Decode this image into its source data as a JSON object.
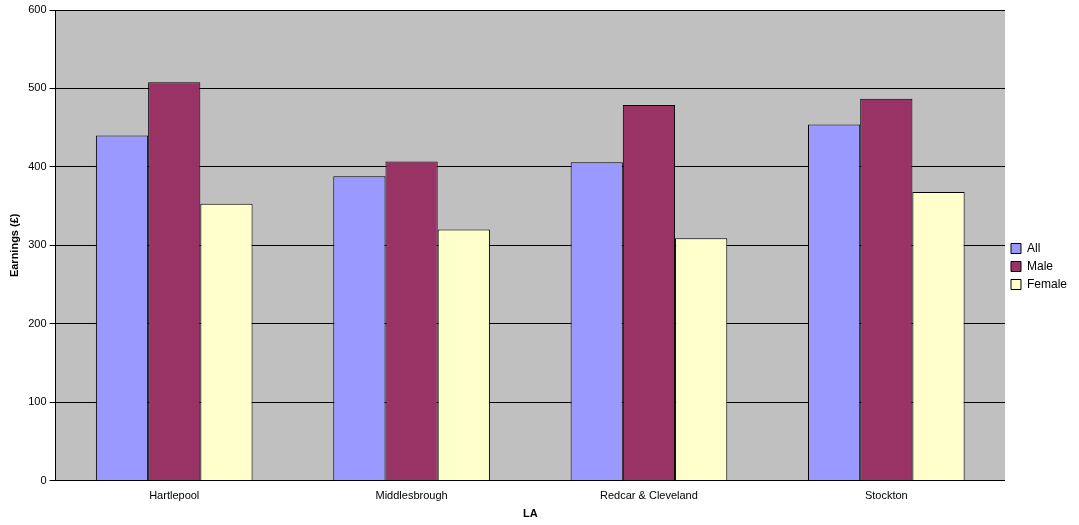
{
  "chart_data": {
    "type": "bar",
    "xlabel": "LA",
    "ylabel": "Earnings (£)",
    "categories": [
      "Hartlepool",
      "Middlesbrough",
      "Redcar & Cleveland",
      "Stockton"
    ],
    "series": [
      {
        "name": "All",
        "color": "#9999ff",
        "values": [
          440,
          388,
          406,
          454
        ]
      },
      {
        "name": "Male",
        "color": "#993366",
        "values": [
          508,
          407,
          479,
          487
        ]
      },
      {
        "name": "Female",
        "color": "#ffffcc",
        "values": [
          353,
          320,
          309,
          368
        ]
      }
    ],
    "ylim": [
      0,
      600
    ],
    "yticks": [
      0,
      100,
      200,
      300,
      400,
      500,
      600
    ],
    "grid": "y",
    "legend": "right"
  }
}
